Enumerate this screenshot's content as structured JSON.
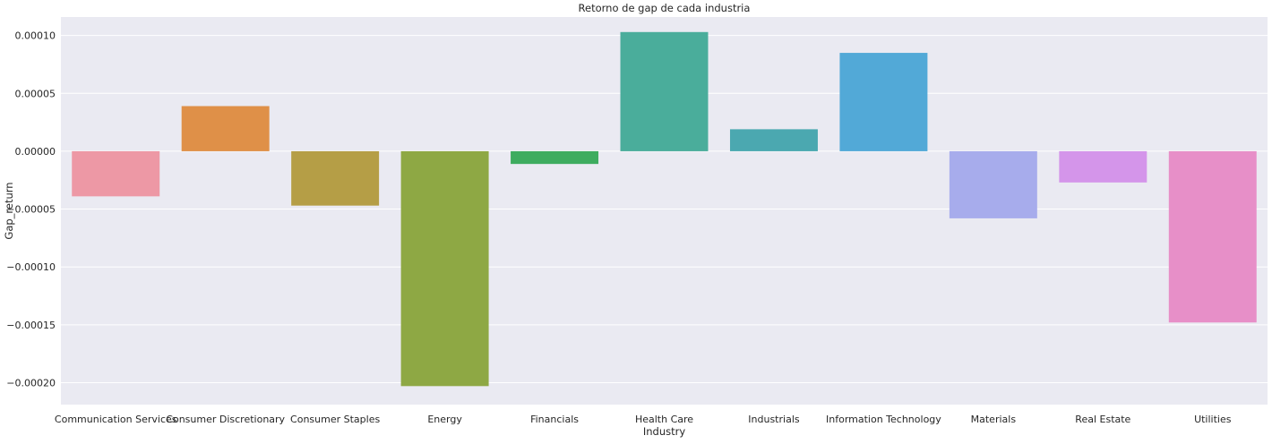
{
  "chart_data": {
    "type": "bar",
    "title": "Retorno de gap de cada industria",
    "xlabel": "Industry",
    "ylabel": "Gap_return",
    "categories": [
      "Communication Services",
      "Consumer Discretionary",
      "Consumer Staples",
      "Energy",
      "Financials",
      "Health Care",
      "Industrials",
      "Information Technology",
      "Materials",
      "Real Estate",
      "Utilities"
    ],
    "values": [
      -3.9e-05,
      3.9e-05,
      -4.7e-05,
      -0.000203,
      -1.1e-05,
      0.000103,
      1.9e-05,
      8.5e-05,
      -5.8e-05,
      -2.7e-05,
      -0.000148
    ],
    "colors": [
      "#ed98a5",
      "#df9048",
      "#b59e46",
      "#8ea844",
      "#3eac5f",
      "#4aad9b",
      "#4ba8b0",
      "#52a9d7",
      "#a7acec",
      "#d495ea",
      "#e78fc8"
    ],
    "ylim": [
      -0.000219,
      0.000116
    ],
    "yticks": [
      0.0001,
      5e-05,
      0.0,
      -5e-05,
      -0.0001,
      -0.00015,
      -0.0002
    ],
    "ytick_labels": [
      "0.00010",
      "0.00005",
      "0.00000",
      "−0.00005",
      "−0.00010",
      "−0.00015",
      "−0.00020"
    ],
    "grid": true,
    "background": "#eaeaf2",
    "grid_color": "#ffffff"
  }
}
